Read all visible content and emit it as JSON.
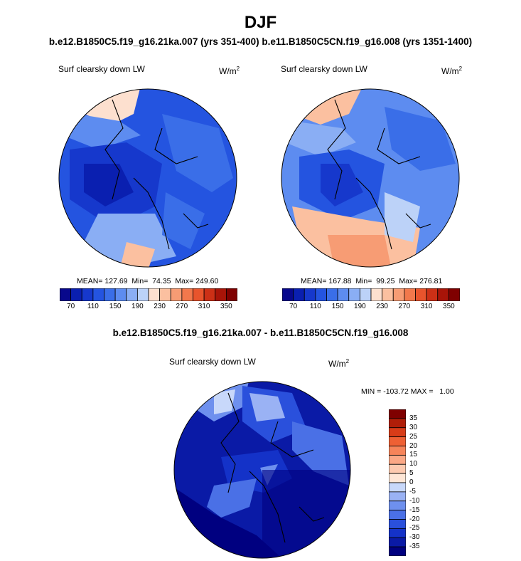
{
  "figure": {
    "title": "DJF",
    "subtitle": "b.e12.B1850C5.f19_g16.21ka.007 (yrs 351-400) b.e11.B1850C5CN.f19_g16.008 (yrs 1351-1400)",
    "diff_title": "b.e12.B1850C5.f19_g16.21ka.007 - b.e11.B1850C5CN.f19_g16.008"
  },
  "colors": {
    "abs_palette": [
      "#08088c",
      "#0a1fb0",
      "#1638cc",
      "#2454e0",
      "#3a6ee8",
      "#5d8cf0",
      "#8aaef4",
      "#bcd2f8",
      "#fde0cf",
      "#fbc0a0",
      "#f79c74",
      "#f2784c",
      "#e8542c",
      "#cc3016",
      "#a81408",
      "#7f0000"
    ],
    "diff_palette": [
      "#000080",
      "#0a1aa6",
      "#1432c8",
      "#2a50dc",
      "#4a70e6",
      "#6e90ee",
      "#9ab2f4",
      "#c8d8fa",
      "#fee6d6",
      "#fdcab0",
      "#fba886",
      "#f6845a",
      "#ee6034",
      "#d83c18",
      "#b01e08",
      "#7f0000"
    ]
  },
  "chart_data": [
    {
      "type": "heatmap",
      "panel": "left",
      "label": "Surf clearsky down LW",
      "units": "W/m",
      "units_sup": "2",
      "stats": "MEAN= 127.69  Min=  74.35  Max= 249.60",
      "mean": 127.69,
      "min": 74.35,
      "max": 249.6,
      "colorbar_ticks": [
        "70",
        "110",
        "150",
        "190",
        "230",
        "270",
        "310",
        "350"
      ],
      "levels": [
        70,
        90,
        110,
        130,
        150,
        170,
        190,
        210,
        230,
        250,
        270,
        290,
        310,
        330,
        350
      ]
    },
    {
      "type": "heatmap",
      "panel": "right",
      "label": "Surf clearsky down LW",
      "units": "W/m",
      "units_sup": "2",
      "stats": "MEAN= 167.88  Min=  99.25  Max= 276.81",
      "mean": 167.88,
      "min": 99.25,
      "max": 276.81,
      "colorbar_ticks": [
        "70",
        "110",
        "150",
        "190",
        "230",
        "270",
        "310",
        "350"
      ],
      "levels": [
        70,
        90,
        110,
        130,
        150,
        170,
        190,
        210,
        230,
        250,
        270,
        290,
        310,
        330,
        350
      ]
    },
    {
      "type": "heatmap",
      "panel": "difference",
      "label": "Surf clearsky down LW",
      "units": "W/m",
      "units_sup": "2",
      "stats": "MIN = -103.72 MAX =   1.00",
      "min": -103.72,
      "max": 1.0,
      "colorbar_ticks": [
        "35",
        "30",
        "25",
        "20",
        "15",
        "10",
        "5",
        "0",
        "-5",
        "-10",
        "-15",
        "-20",
        "-25",
        "-30",
        "-35"
      ]
    }
  ]
}
